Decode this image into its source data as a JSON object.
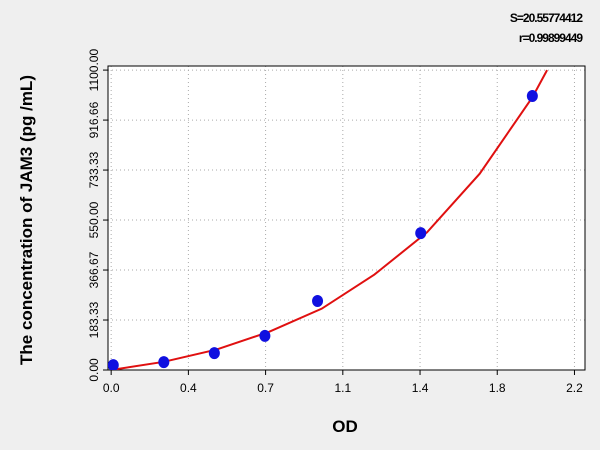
{
  "chart_data": {
    "type": "scatter-fit",
    "annotations": [
      "S=20.55774412",
      "r=0.99899449"
    ],
    "x_label": "OD",
    "y_label": "The concentration of JAM3 (pg /mL)",
    "xlim": [
      -0.015,
      2.25
    ],
    "ylim": [
      0,
      1115
    ],
    "xticks": [
      {
        "value": 0,
        "label": "0.0"
      },
      {
        "value": 0.3667,
        "label": "0.4"
      },
      {
        "value": 0.7333,
        "label": "0.7"
      },
      {
        "value": 1.1,
        "label": "1.1"
      },
      {
        "value": 1.4667,
        "label": "1.4"
      },
      {
        "value": 1.8333,
        "label": "1.8"
      },
      {
        "value": 2.2,
        "label": "2.2"
      }
    ],
    "yticks": [
      {
        "value": 0,
        "label": "0.00"
      },
      {
        "value": 183.33,
        "label": "183.33"
      },
      {
        "value": 366.67,
        "label": "366.67"
      },
      {
        "value": 550,
        "label": "550.00"
      },
      {
        "value": 733.33,
        "label": "733.33"
      },
      {
        "value": 916.66,
        "label": "916.66"
      },
      {
        "value": 1100,
        "label": "1100.00"
      }
    ],
    "grid": true,
    "series": [
      {
        "name": "standards",
        "kind": "points",
        "color": "#1010e0",
        "x": [
          0.01,
          0.25,
          0.49,
          0.73,
          0.98,
          1.47,
          2.0
        ],
        "values": [
          18,
          29,
          62,
          125,
          253,
          502,
          1005
        ]
      },
      {
        "name": "fit",
        "kind": "line",
        "color": "#e01010",
        "x": [
          0,
          0.25,
          0.5,
          0.75,
          1.0,
          1.25,
          1.5,
          1.75,
          2.0,
          2.07
        ],
        "values": [
          0,
          30,
          75,
          140,
          225,
          350,
          505,
          720,
          1000,
          1100
        ]
      }
    ]
  }
}
